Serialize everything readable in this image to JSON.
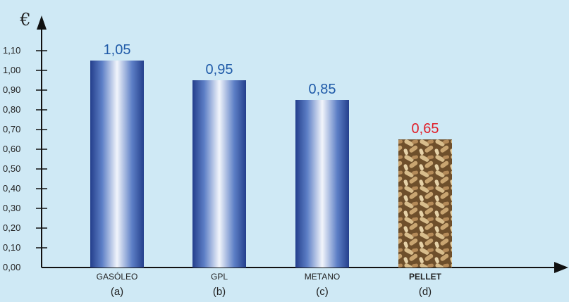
{
  "chart_data": {
    "type": "bar",
    "unit_label": "€",
    "categories": [
      "GASÓLEO",
      "GPL",
      "METANO",
      "PELLET"
    ],
    "sublabels": [
      "(a)",
      "(b)",
      "(c)",
      "(d)"
    ],
    "values": [
      1.05,
      0.95,
      0.85,
      0.65
    ],
    "value_labels": [
      "1,05",
      "0,95",
      "0,85",
      "0,65"
    ],
    "highlight_index": 3,
    "ylim": [
      0,
      1.1
    ],
    "yticks": [
      "0,00",
      "0,10",
      "0,20",
      "0,30",
      "0,40",
      "0,50",
      "0,60",
      "0,70",
      "0,80",
      "0,90",
      "1,00",
      "1,10"
    ],
    "title": "",
    "xlabel": "",
    "ylabel": "",
    "grid": false,
    "colors": {
      "bar": "#2f55a8",
      "value_text": "#1f5aa8",
      "highlight_text": "#e0202a",
      "pellet": "#b89260",
      "axis": "#111111"
    }
  }
}
